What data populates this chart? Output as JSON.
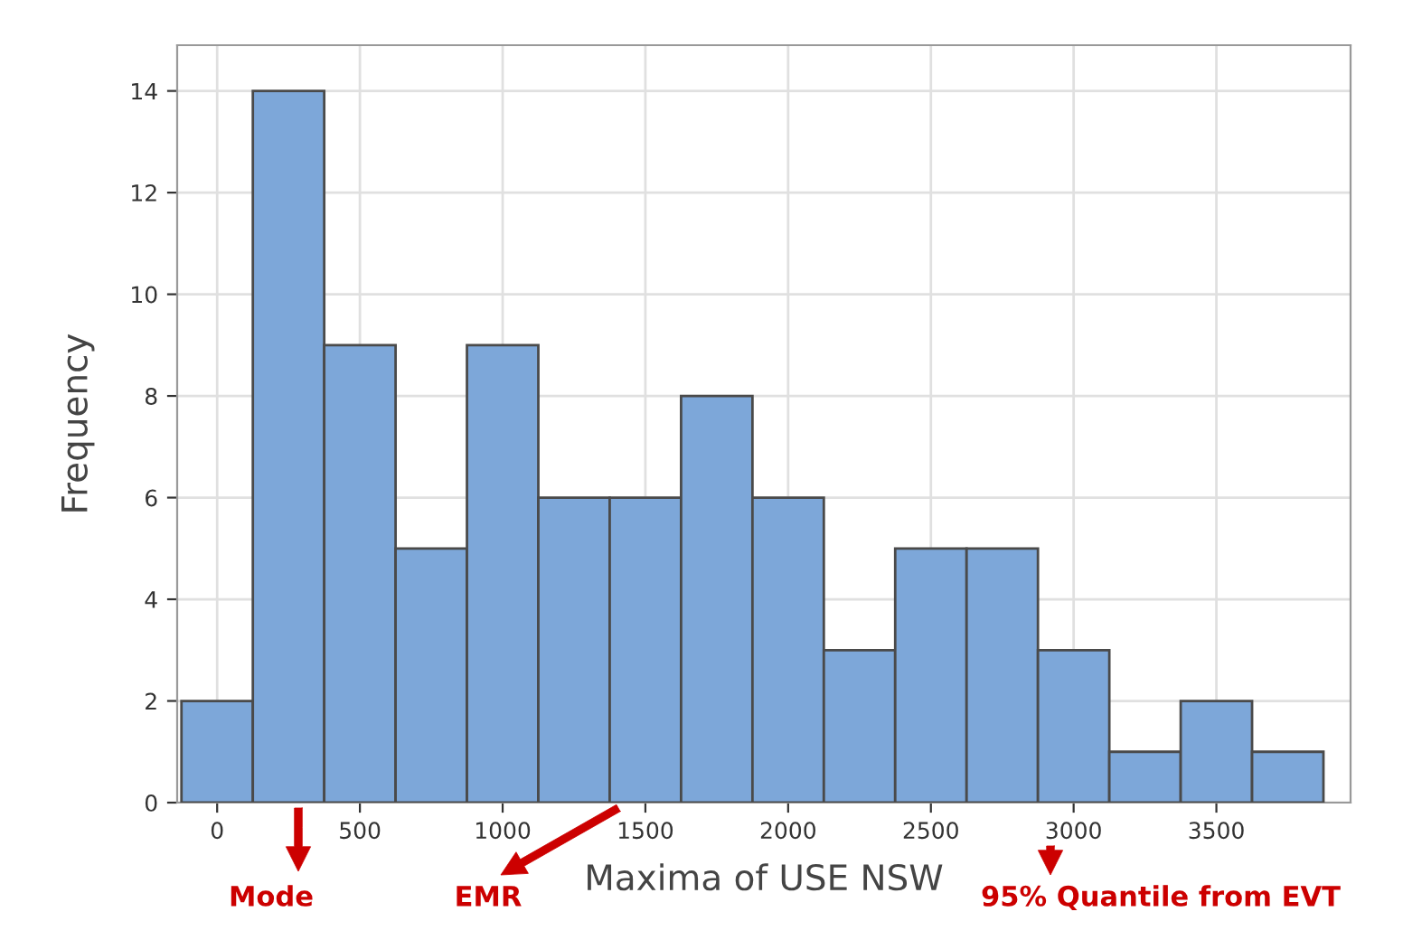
{
  "chart_data": {
    "type": "histogram",
    "xlabel": "Maxima of USE NSW",
    "ylabel": "Frequency",
    "bins": [
      -125,
      125,
      375,
      625,
      875,
      1125,
      1375,
      1625,
      1875,
      2125,
      2375,
      2625,
      2875,
      3125,
      3375,
      3625,
      3875
    ],
    "values": [
      2,
      14,
      9,
      5,
      9,
      6,
      6,
      8,
      6,
      3,
      5,
      5,
      3,
      1,
      2,
      1
    ],
    "color": "#7da7d9",
    "xlim": [
      -140,
      3970
    ],
    "ylim": [
      0,
      14.9
    ],
    "xticks": [
      0,
      500,
      1000,
      1500,
      2000,
      2500,
      3000,
      3500
    ],
    "yticks": [
      0,
      2,
      4,
      6,
      8,
      10,
      12,
      14
    ],
    "grid": true,
    "annotations": [
      "Mode",
      "EMR",
      "95% Quantile from EVT"
    ]
  }
}
